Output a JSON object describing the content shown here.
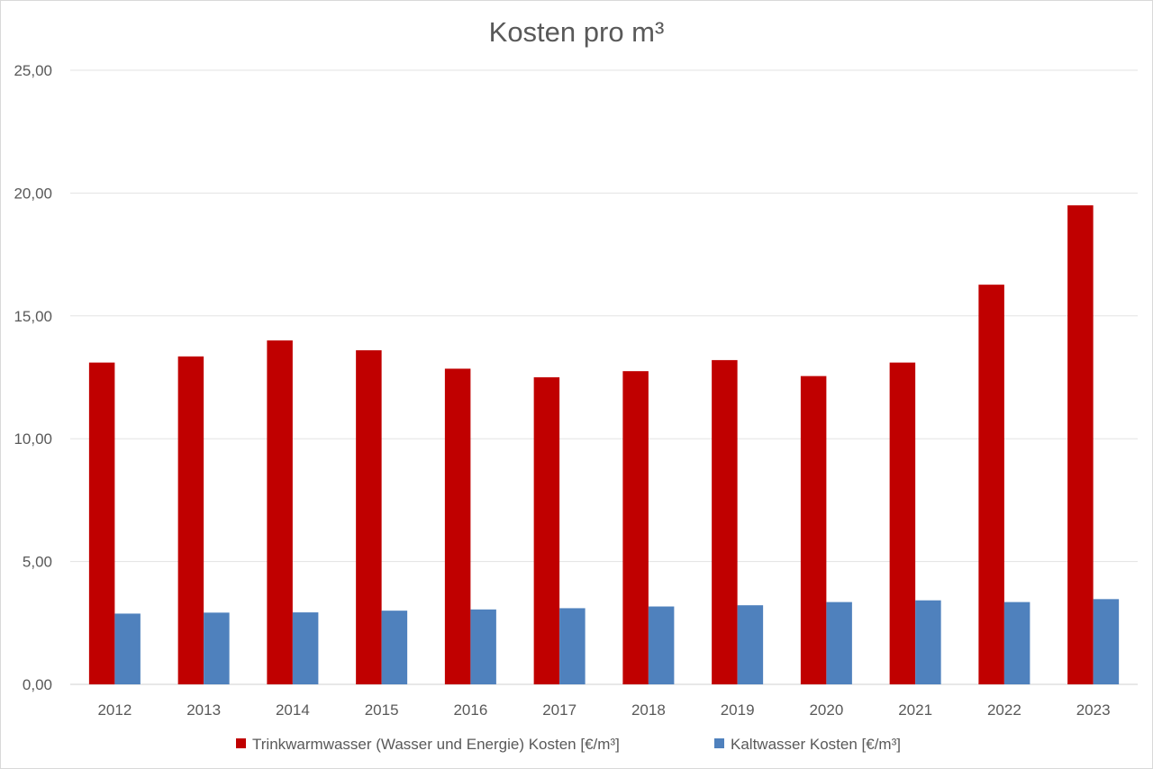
{
  "chart_data": {
    "type": "bar",
    "title": "Kosten pro m³",
    "xlabel": "",
    "ylabel": "",
    "ylim": [
      0,
      25
    ],
    "y_ticks": [
      "0,00",
      "5,00",
      "10,00",
      "15,00",
      "20,00",
      "25,00"
    ],
    "y_tick_values": [
      0,
      5,
      10,
      15,
      20,
      25
    ],
    "grid": true,
    "legend_position": "bottom",
    "categories": [
      "2012",
      "2013",
      "2014",
      "2015",
      "2016",
      "2017",
      "2018",
      "2019",
      "2020",
      "2021",
      "2022",
      "2023"
    ],
    "series": [
      {
        "name": "Trinkwarmwasser (Wasser und Energie) Kosten [€/m³]",
        "color": "#c00000",
        "values": [
          13.1,
          13.35,
          14.0,
          13.6,
          12.85,
          12.5,
          12.75,
          13.2,
          12.55,
          13.1,
          16.27,
          19.5
        ]
      },
      {
        "name": "Kaltwasser Kosten [€/m³]",
        "color": "#4f81bd",
        "values": [
          2.88,
          2.92,
          2.93,
          3.0,
          3.05,
          3.1,
          3.17,
          3.22,
          3.35,
          3.42,
          3.35,
          3.47
        ]
      }
    ]
  }
}
